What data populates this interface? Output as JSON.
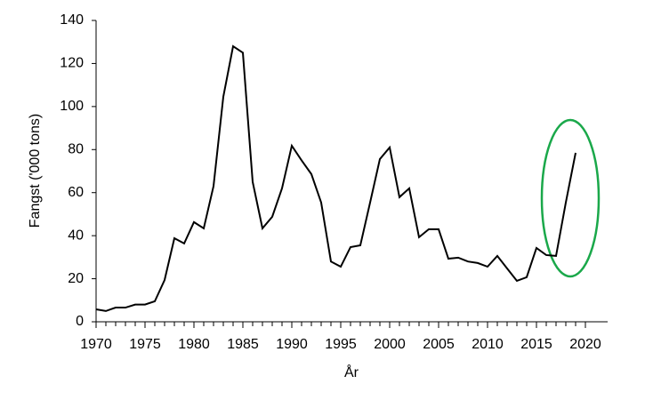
{
  "chart_data": {
    "type": "line",
    "x_label": "År",
    "y_label": "Fangst ('000 tons)",
    "x": [
      1970,
      1971,
      1972,
      1973,
      1974,
      1975,
      1976,
      1977,
      1978,
      1979,
      1980,
      1981,
      1982,
      1983,
      1984,
      1985,
      1986,
      1987,
      1988,
      1989,
      1990,
      1991,
      1992,
      1993,
      1994,
      1995,
      1996,
      1997,
      1998,
      1999,
      2000,
      2001,
      2002,
      2003,
      2004,
      2005,
      2006,
      2007,
      2008,
      2009,
      2010,
      2011,
      2012,
      2013,
      2014,
      2015,
      2016,
      2017,
      2018,
      2019
    ],
    "values": [
      5.8,
      5,
      6.6,
      6.6,
      8,
      8,
      9.5,
      19.4,
      38.8,
      36.4,
      46.3,
      43.4,
      63,
      104.5,
      128,
      125,
      65,
      43.4,
      48.8,
      62,
      81.8,
      75,
      68.6,
      55.4,
      28,
      25.6,
      34.7,
      35.5,
      55.4,
      75.6,
      81,
      57.9,
      62,
      39.3,
      43,
      43,
      29.3,
      29.8,
      28,
      27.3,
      25.6,
      30.6,
      24.8,
      19,
      20.7,
      34.3,
      31,
      30.6,
      55.4,
      78.5
    ],
    "color": "#000000",
    "xlim": [
      1970,
      2022
    ],
    "xticks": [
      1970,
      1975,
      1980,
      1985,
      1990,
      1995,
      2000,
      2005,
      2010,
      2015,
      2020
    ],
    "ylim": [
      0,
      140
    ],
    "yticks": [
      0,
      20,
      40,
      60,
      80,
      100,
      120,
      140
    ],
    "grid": false
  }
}
